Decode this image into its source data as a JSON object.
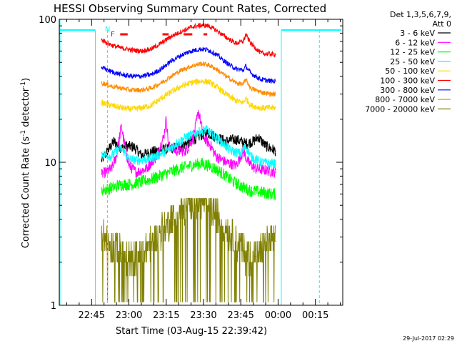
{
  "chart_data": {
    "type": "line",
    "title": "HESSI Observing Summary Count Rates, Corrected",
    "xlabel": "Start Time (03-Aug-15 22:39:42)",
    "ylabel_parts": [
      "Corrected Count Rate (s",
      "-1",
      " detector",
      "-1",
      ")"
    ],
    "yscale": "log",
    "ylim": [
      1,
      100
    ],
    "xlim_minutes": [
      -13,
      101
    ],
    "x_ticks": [
      {
        "m": 0,
        "label": "22:45"
      },
      {
        "m": 15,
        "label": "23:00"
      },
      {
        "m": 30,
        "label": "23:15"
      },
      {
        "m": 45,
        "label": "23:30"
      },
      {
        "m": 60,
        "label": "23:45"
      },
      {
        "m": 75,
        "label": "00:00"
      },
      {
        "m": 90,
        "label": "00:15"
      }
    ],
    "y_ticks": [
      {
        "v": 1,
        "label": "1"
      },
      {
        "v": 10,
        "label": "10"
      },
      {
        "v": 100,
        "label": "100"
      }
    ],
    "legend": {
      "header": [
        "Det 1,3,5,6,7,9,",
        "Att 0"
      ],
      "placement": "outside-right"
    },
    "series": [
      {
        "name": "3 - 6 keV",
        "color": "#000000",
        "points": [
          [
            4,
            10.3
          ],
          [
            9,
            14
          ],
          [
            12,
            12.5
          ],
          [
            14,
            13
          ],
          [
            17,
            12.8
          ],
          [
            20,
            11.2
          ],
          [
            24,
            11.8
          ],
          [
            28,
            12.2
          ],
          [
            32,
            12.5
          ],
          [
            36,
            13
          ],
          [
            40,
            14
          ],
          [
            44,
            15.5
          ],
          [
            47,
            16
          ],
          [
            50,
            15
          ],
          [
            54,
            14
          ],
          [
            58,
            14.5
          ],
          [
            62,
            13.5
          ],
          [
            65,
            14
          ],
          [
            67,
            15
          ],
          [
            70,
            13
          ],
          [
            72,
            12.5
          ],
          [
            74,
            12
          ]
        ]
      },
      {
        "name": "6 - 12 keV",
        "color": "#ff00ff",
        "points": [
          [
            4,
            8.2
          ],
          [
            8,
            9
          ],
          [
            10,
            11
          ],
          [
            12,
            18
          ],
          [
            13,
            14
          ],
          [
            15,
            9.5
          ],
          [
            18,
            8.5
          ],
          [
            22,
            9
          ],
          [
            26,
            11
          ],
          [
            29,
            15
          ],
          [
            30,
            20
          ],
          [
            31,
            13
          ],
          [
            34,
            12
          ],
          [
            38,
            12
          ],
          [
            41,
            15
          ],
          [
            43,
            23
          ],
          [
            45,
            15
          ],
          [
            48,
            13
          ],
          [
            50,
            11
          ],
          [
            54,
            10
          ],
          [
            58,
            9.5
          ],
          [
            60,
            11
          ],
          [
            61,
            12
          ],
          [
            63,
            10
          ],
          [
            66,
            9
          ],
          [
            70,
            8.8
          ],
          [
            74,
            8.5
          ]
        ]
      },
      {
        "name": "12 - 25 keV",
        "color": "#00ff00",
        "points": [
          [
            4,
            6.4
          ],
          [
            8,
            6.6
          ],
          [
            12,
            7
          ],
          [
            16,
            7
          ],
          [
            20,
            7.3
          ],
          [
            24,
            7.6
          ],
          [
            28,
            8.1
          ],
          [
            32,
            8.6
          ],
          [
            36,
            9.1
          ],
          [
            40,
            9.5
          ],
          [
            44,
            9.8
          ],
          [
            48,
            9.4
          ],
          [
            52,
            8.5
          ],
          [
            56,
            7.5
          ],
          [
            60,
            6.8
          ],
          [
            64,
            6.3
          ],
          [
            68,
            6.2
          ],
          [
            72,
            6
          ],
          [
            74,
            6
          ]
        ]
      },
      {
        "name": "25 - 50 keV",
        "color": "#00ffff",
        "points": [
          [
            4,
            11.5
          ],
          [
            8,
            11
          ],
          [
            11,
            12.5
          ],
          [
            13,
            12
          ],
          [
            15,
            10.5
          ],
          [
            18,
            10.3
          ],
          [
            22,
            10.5
          ],
          [
            26,
            11
          ],
          [
            30,
            12
          ],
          [
            34,
            13.5
          ],
          [
            38,
            15
          ],
          [
            42,
            16
          ],
          [
            46,
            17
          ],
          [
            48,
            16
          ],
          [
            52,
            14
          ],
          [
            56,
            12
          ],
          [
            60,
            11.5
          ],
          [
            62,
            13
          ],
          [
            64,
            11
          ],
          [
            68,
            10
          ],
          [
            72,
            9.8
          ],
          [
            74,
            9.8
          ]
        ]
      },
      {
        "name": "50 - 100 keV",
        "color": "#ffd700",
        "points": [
          [
            4,
            26
          ],
          [
            8,
            25
          ],
          [
            12,
            24
          ],
          [
            16,
            23.5
          ],
          [
            20,
            24
          ],
          [
            24,
            25
          ],
          [
            28,
            28
          ],
          [
            32,
            31
          ],
          [
            36,
            34
          ],
          [
            40,
            36
          ],
          [
            44,
            37
          ],
          [
            47,
            36.5
          ],
          [
            50,
            34
          ],
          [
            54,
            30
          ],
          [
            58,
            27
          ],
          [
            61,
            26
          ],
          [
            62,
            28
          ],
          [
            64,
            25
          ],
          [
            68,
            24
          ],
          [
            72,
            24
          ],
          [
            74,
            24
          ]
        ]
      },
      {
        "name": "100 - 300 keV",
        "color": "#ff0000",
        "points": [
          [
            4,
            72
          ],
          [
            8,
            66
          ],
          [
            12,
            63
          ],
          [
            16,
            61
          ],
          [
            20,
            60
          ],
          [
            24,
            62
          ],
          [
            28,
            68
          ],
          [
            32,
            76
          ],
          [
            36,
            82
          ],
          [
            40,
            88
          ],
          [
            44,
            91
          ],
          [
            47,
            90
          ],
          [
            50,
            84
          ],
          [
            54,
            75
          ],
          [
            58,
            68
          ],
          [
            61,
            70
          ],
          [
            62,
            78
          ],
          [
            64,
            68
          ],
          [
            68,
            58
          ],
          [
            72,
            57
          ],
          [
            74,
            57
          ]
        ]
      },
      {
        "name": "300 - 800 keV",
        "color": "#0000ff",
        "points": [
          [
            4,
            46
          ],
          [
            8,
            43
          ],
          [
            12,
            41
          ],
          [
            16,
            40
          ],
          [
            20,
            40
          ],
          [
            24,
            41
          ],
          [
            28,
            45
          ],
          [
            32,
            51
          ],
          [
            36,
            56
          ],
          [
            40,
            60
          ],
          [
            44,
            62
          ],
          [
            47,
            61
          ],
          [
            50,
            57
          ],
          [
            54,
            50
          ],
          [
            58,
            45
          ],
          [
            61,
            44
          ],
          [
            62,
            47
          ],
          [
            64,
            42
          ],
          [
            68,
            38
          ],
          [
            72,
            37
          ],
          [
            74,
            37
          ]
        ]
      },
      {
        "name": "800 - 7000 keV",
        "color": "#ff8c00",
        "points": [
          [
            4,
            36
          ],
          [
            8,
            34
          ],
          [
            12,
            33
          ],
          [
            16,
            32
          ],
          [
            20,
            32
          ],
          [
            24,
            33
          ],
          [
            28,
            36
          ],
          [
            32,
            40
          ],
          [
            36,
            44
          ],
          [
            40,
            47
          ],
          [
            44,
            49
          ],
          [
            47,
            48
          ],
          [
            50,
            45
          ],
          [
            54,
            40
          ],
          [
            58,
            36
          ],
          [
            61,
            35
          ],
          [
            62,
            38
          ],
          [
            64,
            33
          ],
          [
            68,
            31
          ],
          [
            72,
            30
          ],
          [
            74,
            30
          ]
        ]
      },
      {
        "name": "7000 - 20000 keV",
        "color": "#808000",
        "points": [
          [
            4,
            3.2
          ],
          [
            8,
            2.7
          ],
          [
            12,
            2.3
          ],
          [
            16,
            2
          ],
          [
            20,
            2.3
          ],
          [
            24,
            2.7
          ],
          [
            28,
            3.3
          ],
          [
            32,
            4
          ],
          [
            36,
            4.7
          ],
          [
            40,
            5.2
          ],
          [
            44,
            5.4
          ],
          [
            47,
            5
          ],
          [
            50,
            4.3
          ],
          [
            54,
            3.5
          ],
          [
            58,
            2.8
          ],
          [
            62,
            2.3
          ],
          [
            66,
            2.2
          ],
          [
            70,
            2.6
          ],
          [
            74,
            2.8
          ]
        ]
      }
    ],
    "annotations": {
      "markers": [
        "N",
        "F"
      ],
      "night_color": "#00ffff",
      "flare_color": "#ff0000"
    },
    "timestamp": "29-Jul-2017 02:29"
  }
}
